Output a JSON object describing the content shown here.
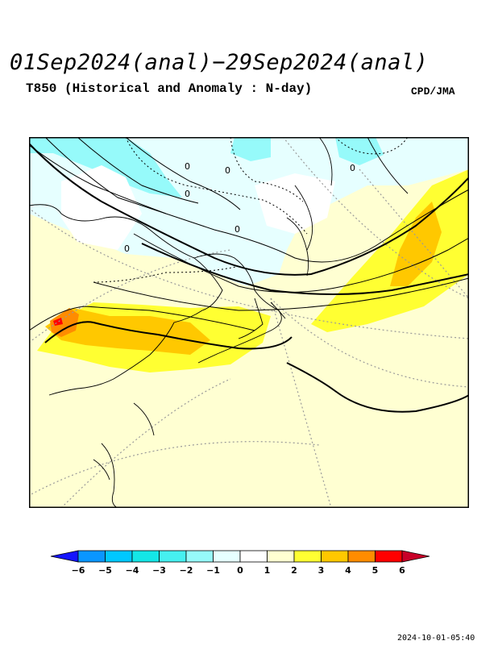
{
  "title": "01Sep2024(anal)−29Sep2024(anal)",
  "subtitle": "T850 (Historical and Anomaly : N-day)",
  "credit": "CPD/JMA",
  "timestamp": "2024-10-01-05:40",
  "contour_labels": [
    "0",
    "0",
    "0",
    "0",
    "0",
    "0"
  ],
  "legend": {
    "ticks": [
      "−6",
      "−5",
      "−4",
      "−3",
      "−2",
      "−1",
      "0",
      "1",
      "2",
      "3",
      "4",
      "5",
      "6"
    ],
    "colors": [
      "#1414ff",
      "#0a96ff",
      "#00c8ff",
      "#14e6e6",
      "#46f0f0",
      "#96fafa",
      "#e6ffff",
      "#ffffff",
      "#ffffd2",
      "#ffff32",
      "#ffc800",
      "#ff8c00",
      "#ff0000",
      "#c80028"
    ]
  },
  "colors": {
    "frame": "#000000",
    "land": "#000000",
    "graticule": "#9a9a9a"
  }
}
